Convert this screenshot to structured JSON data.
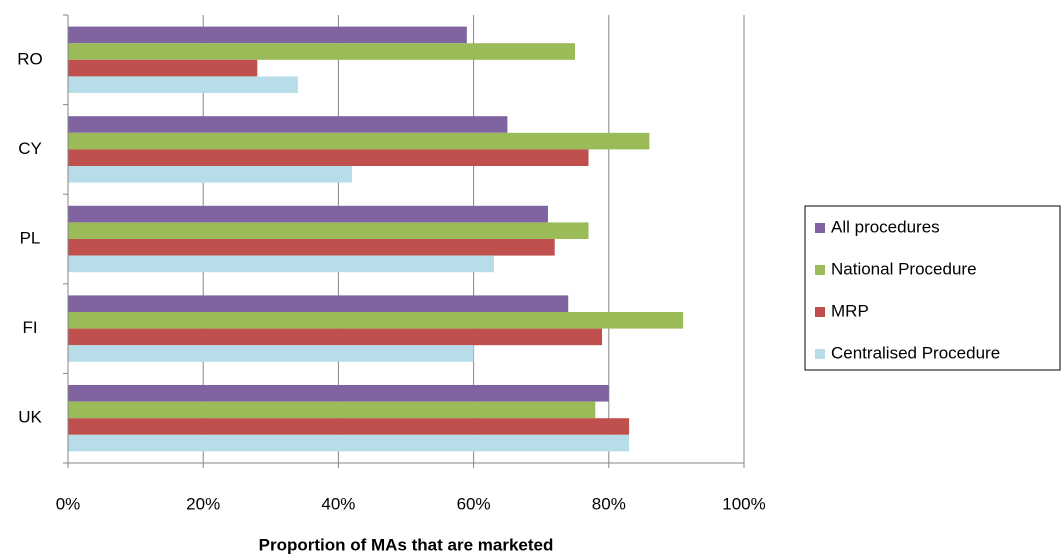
{
  "chart_data": {
    "type": "bar",
    "orientation": "horizontal",
    "x_label": "Proportion of MAs that are marketed",
    "categories": [
      "RO",
      "CY",
      "PL",
      "FI",
      "UK"
    ],
    "series": [
      {
        "name": "All procedures",
        "color": "#8064a2",
        "values": [
          59,
          65,
          71,
          74,
          80
        ]
      },
      {
        "name": "National Procedure",
        "color": "#9bbb59",
        "values": [
          75,
          86,
          77,
          91,
          78
        ]
      },
      {
        "name": "MRP",
        "color": "#c0504d",
        "values": [
          28,
          77,
          72,
          79,
          83
        ]
      },
      {
        "name": "Centralised Procedure",
        "color": "#b7dee8",
        "values": [
          34,
          42,
          63,
          60,
          83
        ]
      }
    ],
    "xlim": [
      0,
      100
    ],
    "xticks": [
      {
        "value": 0,
        "label": "0%"
      },
      {
        "value": 20,
        "label": "20%"
      },
      {
        "value": 40,
        "label": "40%"
      },
      {
        "value": 60,
        "label": "60%"
      },
      {
        "value": 80,
        "label": "80%"
      },
      {
        "value": 100,
        "label": "100%"
      }
    ],
    "grid": true,
    "legend": "right"
  }
}
